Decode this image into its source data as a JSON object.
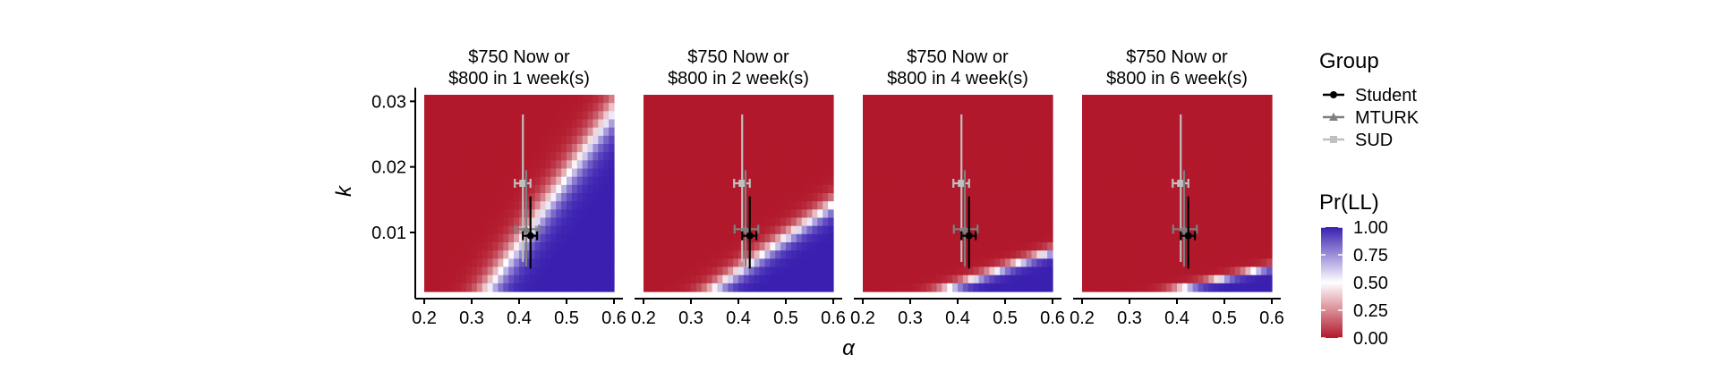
{
  "chart_data": {
    "type": "heatmap",
    "panels": [
      {
        "title_line1": "$750 Now or",
        "title_line2": "$800 in 1 week(s)",
        "weeks": 1
      },
      {
        "title_line1": "$750 Now or",
        "title_line2": "$800 in 2 week(s)",
        "weeks": 2
      },
      {
        "title_line1": "$750 Now or",
        "title_line2": "$800 in 4 week(s)",
        "weeks": 4
      },
      {
        "title_line1": "$750 Now or",
        "title_line2": "$800 in 6 week(s)",
        "weeks": 6
      }
    ],
    "xlabel": "α",
    "ylabel": "k",
    "xlim": [
      0.2,
      0.6
    ],
    "ylim": [
      0.001,
      0.031
    ],
    "x_ticks": [
      "0.2",
      "0.3",
      "0.4",
      "0.5",
      "0.6"
    ],
    "x_tick_values": [
      0.2,
      0.3,
      0.4,
      0.5,
      0.6
    ],
    "y_ticks": [
      "0.01",
      "0.02",
      "0.03"
    ],
    "y_tick_values": [
      0.01,
      0.02,
      0.03
    ],
    "groups": [
      {
        "name": "Student",
        "color": "#000000",
        "marker": "circle",
        "alpha": 0.424,
        "alpha_lo": 0.408,
        "alpha_hi": 0.438,
        "k": 0.0095,
        "k_lo": 0.0045,
        "k_hi": 0.0155
      },
      {
        "name": "MTURK",
        "color": "#7f7f7f",
        "marker": "triangle",
        "alpha": 0.415,
        "alpha_lo": 0.392,
        "alpha_hi": 0.442,
        "k": 0.0105,
        "k_lo": 0.0048,
        "k_hi": 0.0195
      },
      {
        "name": "SUD",
        "color": "#c0c0c0",
        "marker": "square",
        "alpha": 0.408,
        "alpha_lo": 0.391,
        "alpha_hi": 0.424,
        "k": 0.0175,
        "k_lo": 0.0055,
        "k_hi": 0.028
      }
    ],
    "legend": {
      "group_title": "Group",
      "fill_title": "Pr(LL)",
      "fill_ticks": [
        "1.00",
        "0.75",
        "0.50",
        "0.25",
        "0.00"
      ],
      "fill_tick_values": [
        1.0,
        0.75,
        0.5,
        0.25,
        0.0
      ],
      "position": "right"
    },
    "colors": {
      "low": "#b2182b",
      "mid": "#ffffff",
      "high": "#3a1fb0"
    },
    "grid": false
  }
}
